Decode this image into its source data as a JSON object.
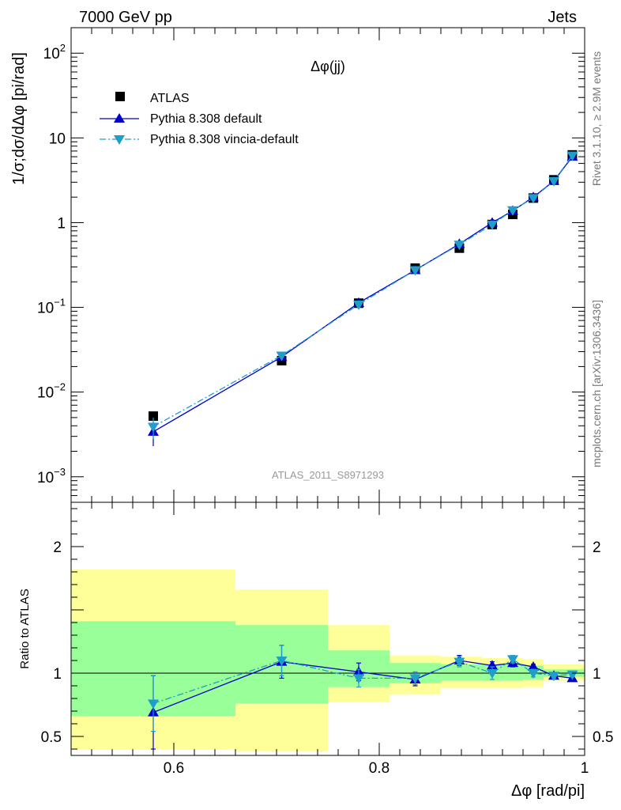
{
  "header": {
    "left": "7000 GeV pp",
    "right": "Jets"
  },
  "side_labels": {
    "rivet": "Rivet 3.1.10, ≥ 2.9M events",
    "mcplots": "mcplots.cern.ch [arXiv:1306.3436]"
  },
  "colors": {
    "atlas": "#000000",
    "pythia_default": "#0000cc",
    "vincia": "#1e9ec8",
    "band_inner": "#99ff99",
    "band_outer": "#ffff99"
  },
  "chart_data": [
    {
      "type": "scatter",
      "name": "main",
      "title": "Δφ(jj)",
      "watermark": "ATLAS_2011_S8971293",
      "ylabel": "1/σ;dσ/dΔφ [pi/rad]",
      "yscale": "log",
      "xlim": [
        0.5,
        1.0
      ],
      "ylim": [
        0.0005,
        200
      ],
      "yticks": [
        {
          "value": 0.001,
          "base": "10",
          "exp": "−3"
        },
        {
          "value": 0.01,
          "base": "10",
          "exp": "−2"
        },
        {
          "value": 0.1,
          "base": "10",
          "exp": "−1"
        },
        {
          "value": 1,
          "base": "1",
          "exp": ""
        },
        {
          "value": 10,
          "base": "10",
          "exp": ""
        },
        {
          "value": 100,
          "base": "10",
          "exp": "2"
        }
      ],
      "legend_position": "top-left",
      "series": [
        {
          "name": "ATLAS",
          "style": "square",
          "points": [
            {
              "x": 0.58,
              "y": 0.0052
            },
            {
              "x": 0.705,
              "y": 0.0235
            },
            {
              "x": 0.78,
              "y": 0.112
            },
            {
              "x": 0.835,
              "y": 0.29
            },
            {
              "x": 0.878,
              "y": 0.5
            },
            {
              "x": 0.91,
              "y": 0.95
            },
            {
              "x": 0.93,
              "y": 1.25
            },
            {
              "x": 0.95,
              "y": 1.95
            },
            {
              "x": 0.97,
              "y": 3.2
            },
            {
              "x": 0.988,
              "y": 6.3
            }
          ]
        },
        {
          "name": "Pythia 8.308 default",
          "style": "triangle-up",
          "line": "solid",
          "points": [
            {
              "x": 0.58,
              "y": 0.0034,
              "err": 0.0011
            },
            {
              "x": 0.705,
              "y": 0.026,
              "err": 0.002
            },
            {
              "x": 0.78,
              "y": 0.113,
              "err": 0.006
            },
            {
              "x": 0.835,
              "y": 0.275,
              "err": 0.01
            },
            {
              "x": 0.878,
              "y": 0.56,
              "err": 0.015
            },
            {
              "x": 0.91,
              "y": 1.0,
              "err": 0.02
            },
            {
              "x": 0.93,
              "y": 1.38,
              "err": 0.03
            },
            {
              "x": 0.95,
              "y": 2.0,
              "err": 0.04
            },
            {
              "x": 0.97,
              "y": 3.1,
              "err": 0.05
            },
            {
              "x": 0.988,
              "y": 6.0,
              "err": 0.08
            }
          ]
        },
        {
          "name": "Pythia 8.308 vincia-default",
          "style": "triangle-down",
          "line": "dashdot",
          "points": [
            {
              "x": 0.58,
              "y": 0.0039,
              "err": 0.0011
            },
            {
              "x": 0.705,
              "y": 0.027,
              "err": 0.002
            },
            {
              "x": 0.78,
              "y": 0.108,
              "err": 0.006
            },
            {
              "x": 0.835,
              "y": 0.275,
              "err": 0.01
            },
            {
              "x": 0.878,
              "y": 0.55,
              "err": 0.015
            },
            {
              "x": 0.91,
              "y": 0.95,
              "err": 0.02
            },
            {
              "x": 0.93,
              "y": 1.4,
              "err": 0.03
            },
            {
              "x": 0.95,
              "y": 1.95,
              "err": 0.04
            },
            {
              "x": 0.97,
              "y": 3.1,
              "err": 0.05
            },
            {
              "x": 0.988,
              "y": 6.2,
              "err": 0.08
            }
          ]
        }
      ]
    },
    {
      "type": "scatter",
      "name": "ratio",
      "ylabel": "Ratio to ATLAS",
      "xlabel": "Δφ [rad/pi]",
      "xlim": [
        0.5,
        1.0
      ],
      "ylim": [
        0.35,
        2.35
      ],
      "xticks": [
        {
          "value": 0.6,
          "label": "0.6"
        },
        {
          "value": 0.8,
          "label": "0.8"
        },
        {
          "value": 1.0,
          "label": "1"
        }
      ],
      "yticks": [
        {
          "value": 0.5,
          "label": "0.5"
        },
        {
          "value": 1,
          "label": "1"
        },
        {
          "value": 2,
          "label": "2"
        }
      ],
      "bands": [
        {
          "x0": 0.5,
          "x1": 0.66,
          "outer": [
            0.4,
            1.82
          ],
          "inner": [
            0.66,
            1.41
          ]
        },
        {
          "x0": 0.66,
          "x1": 0.75,
          "outer": [
            0.38,
            1.66
          ],
          "inner": [
            0.76,
            1.38
          ]
        },
        {
          "x0": 0.75,
          "x1": 0.81,
          "outer": [
            0.77,
            1.38
          ],
          "inner": [
            0.89,
            1.18
          ]
        },
        {
          "x0": 0.81,
          "x1": 0.86,
          "outer": [
            0.83,
            1.14
          ],
          "inner": [
            0.92,
            1.08
          ]
        },
        {
          "x0": 0.86,
          "x1": 0.9,
          "outer": [
            0.88,
            1.13
          ],
          "inner": [
            0.94,
            1.07
          ]
        },
        {
          "x0": 0.9,
          "x1": 0.92,
          "outer": [
            0.88,
            1.12
          ],
          "inner": [
            0.94,
            1.07
          ]
        },
        {
          "x0": 0.92,
          "x1": 0.94,
          "outer": [
            0.88,
            1.12
          ],
          "inner": [
            0.94,
            1.07
          ]
        },
        {
          "x0": 0.94,
          "x1": 0.96,
          "outer": [
            0.89,
            1.11
          ],
          "inner": [
            0.95,
            1.06
          ]
        },
        {
          "x0": 0.96,
          "x1": 0.98,
          "outer": [
            0.94,
            1.07
          ],
          "inner": [
            0.97,
            1.03
          ]
        },
        {
          "x0": 0.98,
          "x1": 1.0,
          "outer": [
            0.94,
            1.07
          ],
          "inner": [
            0.97,
            1.03
          ]
        }
      ],
      "series": [
        {
          "name": "Pythia 8.308 default",
          "style": "triangle-up",
          "line": "solid",
          "points": [
            {
              "x": 0.58,
              "y": 0.69,
              "err": 0.29
            },
            {
              "x": 0.705,
              "y": 1.09,
              "err": 0.13
            },
            {
              "x": 0.78,
              "y": 1.01,
              "err": 0.07
            },
            {
              "x": 0.835,
              "y": 0.95,
              "err": 0.05
            },
            {
              "x": 0.878,
              "y": 1.1,
              "err": 0.04
            },
            {
              "x": 0.91,
              "y": 1.06,
              "err": 0.03
            },
            {
              "x": 0.93,
              "y": 1.08,
              "err": 0.03
            },
            {
              "x": 0.95,
              "y": 1.05,
              "err": 0.02
            },
            {
              "x": 0.97,
              "y": 0.98,
              "err": 0.02
            },
            {
              "x": 0.988,
              "y": 0.96,
              "err": 0.02
            }
          ]
        },
        {
          "name": "Pythia 8.308 vincia-default",
          "style": "triangle-down",
          "line": "dashdot",
          "points": [
            {
              "x": 0.58,
              "y": 0.76,
              "err": 0.22
            },
            {
              "x": 0.705,
              "y": 1.1,
              "err": 0.12
            },
            {
              "x": 0.78,
              "y": 0.96,
              "err": 0.07
            },
            {
              "x": 0.835,
              "y": 0.96,
              "err": 0.05
            },
            {
              "x": 0.878,
              "y": 1.09,
              "err": 0.04
            },
            {
              "x": 0.91,
              "y": 1.0,
              "err": 0.05
            },
            {
              "x": 0.93,
              "y": 1.11,
              "err": 0.03
            },
            {
              "x": 0.95,
              "y": 1.0,
              "err": 0.03
            },
            {
              "x": 0.97,
              "y": 0.98,
              "err": 0.02
            },
            {
              "x": 0.988,
              "y": 0.99,
              "err": 0.02
            }
          ]
        }
      ]
    }
  ]
}
